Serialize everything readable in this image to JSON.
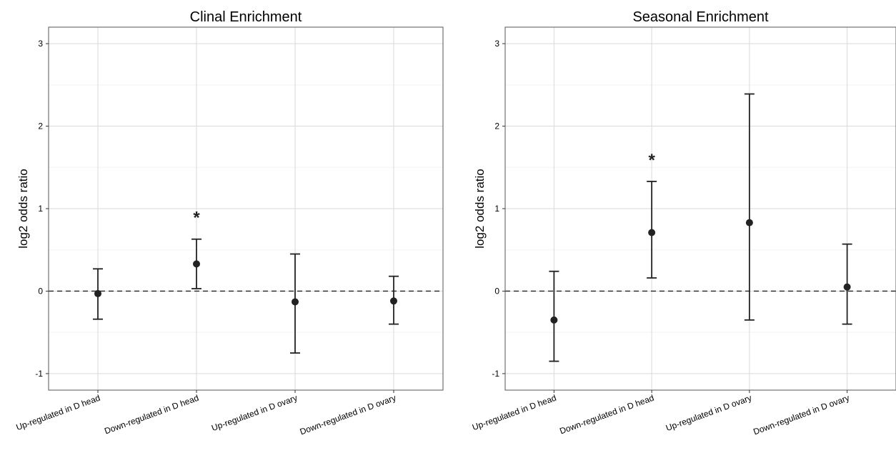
{
  "chart_data": [
    {
      "type": "scatter",
      "title": "Clinal Enrichment",
      "xlabel": "",
      "ylabel": "log2 odds ratio",
      "ylim": [
        -1.2,
        3.2
      ],
      "yticks": [
        -1,
        0,
        1,
        2,
        3
      ],
      "ytick_labels": [
        "-1",
        "0",
        "1",
        "2",
        "3"
      ],
      "grid": true,
      "reference_line": {
        "y": 0,
        "style": "dashed"
      },
      "categories": [
        "Up-regulated in D head",
        "Down-regulated in D head",
        "Up-regulated in D ovary",
        "Down-regulated in D ovary"
      ],
      "values": [
        -0.03,
        0.33,
        -0.13,
        -0.12
      ],
      "lower": [
        -0.34,
        0.03,
        -0.75,
        -0.4
      ],
      "upper": [
        0.27,
        0.63,
        0.45,
        0.18
      ],
      "significance": [
        "",
        "*",
        "",
        ""
      ]
    },
    {
      "type": "scatter",
      "title": "Seasonal Enrichment",
      "xlabel": "",
      "ylabel": "log2 odds ratio",
      "ylim": [
        -1.2,
        3.2
      ],
      "yticks": [
        -1,
        0,
        1,
        2,
        3
      ],
      "ytick_labels": [
        "-1",
        "0",
        "1",
        "2",
        "3"
      ],
      "grid": true,
      "reference_line": {
        "y": 0,
        "style": "dashed"
      },
      "categories": [
        "Up-regulated in D head",
        "Down-regulated in D head",
        "Up-regulated in D ovary",
        "Down-regulated in D ovary"
      ],
      "values": [
        -0.35,
        0.71,
        0.83,
        0.05
      ],
      "lower": [
        -0.85,
        0.16,
        -0.35,
        -0.4
      ],
      "upper": [
        0.24,
        1.33,
        2.39,
        0.57
      ],
      "significance": [
        "",
        "*",
        "",
        ""
      ]
    }
  ]
}
